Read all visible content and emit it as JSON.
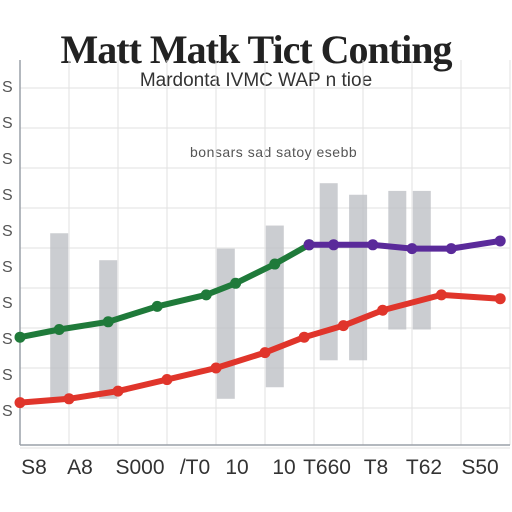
{
  "chart_data": {
    "type": "line",
    "title": "Matt Matk Tict Conting",
    "subtitle": "Mardonta IVMC WAP n tioe",
    "annotation": "bonsars sad satoy esebb",
    "x_tick_labels": [
      "S8",
      "A8",
      "S000",
      "/T0",
      "10",
      "10",
      "T660",
      "T8",
      "T62",
      "S50"
    ],
    "y_tick_labels": [
      "S",
      "S",
      "S",
      "S",
      "S",
      "S",
      "S",
      "S",
      "S",
      "S"
    ],
    "xlim": [
      0,
      10
    ],
    "ylim": [
      0,
      100
    ],
    "grid": true,
    "bars": {
      "color": "#b9bcc2",
      "values": [
        {
          "x": 0.8,
          "low": 12,
          "high": 55
        },
        {
          "x": 1.8,
          "low": 12,
          "high": 48
        },
        {
          "x": 4.2,
          "low": 12,
          "high": 51
        },
        {
          "x": 5.2,
          "low": 15,
          "high": 57
        },
        {
          "x": 6.3,
          "low": 22,
          "high": 68
        },
        {
          "x": 6.9,
          "low": 22,
          "high": 65
        },
        {
          "x": 7.7,
          "low": 30,
          "high": 66
        },
        {
          "x": 8.2,
          "low": 30,
          "high": 66
        }
      ]
    },
    "series": [
      {
        "color": "#1f7a3a",
        "x": [
          0,
          0.8,
          1.8,
          2.8,
          3.8,
          4.4,
          5.2,
          5.9
        ],
        "y": [
          28,
          30,
          32,
          36,
          39,
          42,
          47,
          52
        ]
      },
      {
        "color": "#5a2a9a",
        "x": [
          5.9,
          6.4,
          7.2,
          8.0,
          8.8,
          9.8
        ],
        "y": [
          52,
          52,
          52,
          51,
          51,
          53
        ]
      },
      {
        "color": "#e0352b",
        "x": [
          0,
          1.0,
          2.0,
          3.0,
          4.0,
          5.0,
          5.8,
          6.6,
          7.4,
          8.6,
          9.8
        ],
        "y": [
          11,
          12,
          14,
          17,
          20,
          24,
          28,
          31,
          35,
          39,
          38
        ]
      }
    ]
  }
}
